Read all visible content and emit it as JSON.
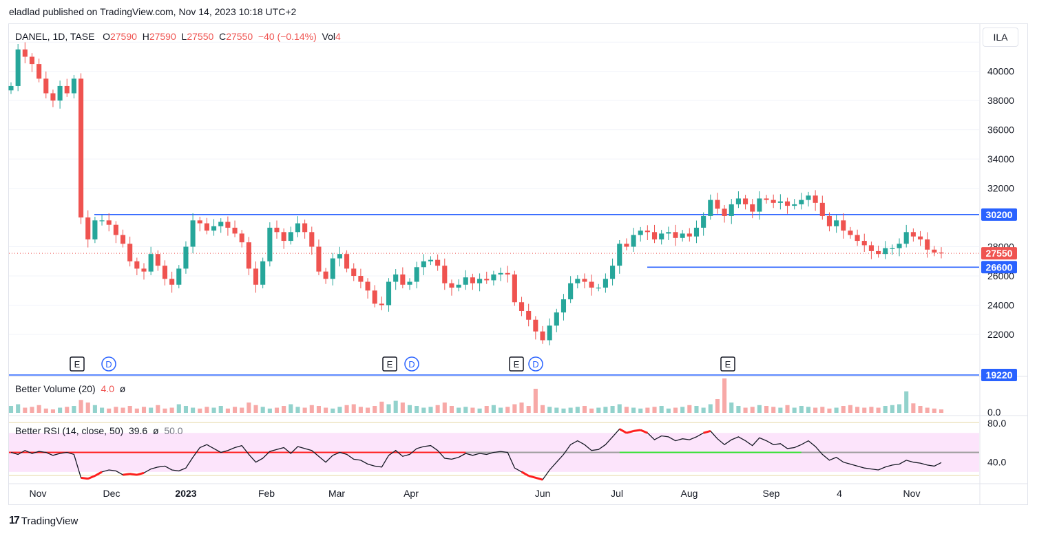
{
  "publisher": "eladlad published on TradingView.com, Nov 14, 2023 10:18 UTC+2",
  "currency_button": "ILA",
  "legend": {
    "symbol": "DANEL, 1D, TASE",
    "o_label": "O",
    "o_value": "27590",
    "h_label": "H",
    "h_value": "27590",
    "l_label": "L",
    "l_value": "27550",
    "c_label": "C",
    "c_value": "27550",
    "change": "−40 (−0.14%)",
    "vol_label": "Vol",
    "vol_value": "4"
  },
  "volume_legend": {
    "name": "Better Volume (20)",
    "value": "4.0",
    "symbol": "ø"
  },
  "rsi_legend": {
    "name": "Better RSI (14, close, 50)",
    "value": "39.6",
    "symbol": "ø",
    "level": "50.0"
  },
  "brand": "TradingView",
  "colors": {
    "up": "#26a69a",
    "down": "#ef5350",
    "line": "#2962ff",
    "rsi_band": "#fce4fb"
  },
  "chart_data": {
    "type": "candlestick",
    "price_axis": {
      "ylim": [
        19220,
        43000
      ],
      "ticks": [
        "42000",
        "40000",
        "38000",
        "36000",
        "34000",
        "32000",
        "28000",
        "26000",
        "24000",
        "22000"
      ]
    },
    "price_tags": [
      {
        "label": "30200",
        "value": 30200,
        "color": "#2962ff"
      },
      {
        "label": "27550",
        "value": 27550,
        "color": "#ef5350"
      },
      {
        "label": "26600",
        "value": 26600,
        "color": "#2962ff"
      },
      {
        "label": "19220",
        "value": 19220,
        "color": "#2962ff"
      }
    ],
    "horizontal_lines": [
      {
        "value": 30200,
        "from_month": "Dec",
        "to": "end"
      },
      {
        "value": 26600,
        "from_month": "Jul",
        "to": "end"
      },
      {
        "value": 19220,
        "from_month": "start",
        "to": "end"
      }
    ],
    "time_axis": [
      "Nov",
      "Dec",
      "2023",
      "Feb",
      "Mar",
      "Apr",
      "Jun",
      "Jul",
      "Aug",
      "Sep",
      "4",
      "Nov"
    ],
    "events": [
      "E",
      "D",
      "E",
      "D",
      "E",
      "D",
      "E"
    ],
    "close_series": [
      39000,
      41500,
      41000,
      40500,
      39500,
      38500,
      38000,
      39000,
      38500,
      39500,
      30000,
      28500,
      29800,
      29800,
      29500,
      28800,
      28200,
      27000,
      26500,
      26300,
      27500,
      26700,
      25800,
      25400,
      26500,
      28000,
      29800,
      29600,
      29100,
      29400,
      29700,
      29300,
      28900,
      28300,
      26500,
      25400,
      27000,
      29300,
      29000,
      28400,
      29000,
      29600,
      29000,
      28000,
      26300,
      25800,
      27200,
      27500,
      26500,
      26000,
      25600,
      25000,
      24100,
      24000,
      25600,
      26100,
      25400,
      25600,
      26600,
      27000,
      27100,
      26700,
      25500,
      25200,
      25400,
      25900,
      25500,
      25800,
      25700,
      26100,
      26200,
      26100,
      24200,
      23600,
      23000,
      22200,
      21600,
      22600,
      23500,
      24400,
      25500,
      25800,
      25600,
      25200,
      25200,
      25800,
      26700,
      28200,
      28000,
      28800,
      29100,
      29000,
      28500,
      28900,
      29000,
      28600,
      28900,
      28700,
      29300,
      30100,
      31200,
      30600,
      30100,
      30900,
      31300,
      30900,
      30400,
      31300,
      31200,
      31000,
      31100,
      30800,
      30900,
      31200,
      31500,
      31000,
      30100,
      29400,
      29800,
      29100,
      28800,
      28400,
      28100,
      27700,
      27500,
      27900,
      27900,
      28200,
      29000,
      28700,
      28500,
      27800,
      27600,
      27550
    ],
    "volume_series": [
      8,
      10,
      6,
      7,
      9,
      5,
      4,
      6,
      7,
      8,
      15,
      12,
      9,
      6,
      5,
      7,
      6,
      8,
      5,
      7,
      6,
      9,
      5,
      6,
      10,
      8,
      6,
      5,
      7,
      6,
      8,
      5,
      7,
      6,
      12,
      9,
      7,
      5,
      6,
      8,
      10,
      7,
      6,
      9,
      8,
      6,
      5,
      7,
      9,
      10,
      7,
      6,
      8,
      13,
      10,
      14,
      12,
      9,
      8,
      6,
      7,
      9,
      12,
      8,
      6,
      7,
      6,
      5,
      8,
      9,
      6,
      7,
      10,
      12,
      8,
      28,
      9,
      7,
      6,
      5,
      6,
      7,
      8,
      5,
      6,
      7,
      8,
      10,
      7,
      6,
      5,
      6,
      7,
      8,
      5,
      6,
      7,
      9,
      8,
      6,
      10,
      16,
      40,
      12,
      8,
      6,
      7,
      9,
      8,
      7,
      6,
      9,
      6,
      8,
      7,
      6,
      7,
      5,
      6,
      8,
      9,
      7,
      6,
      7,
      6,
      8,
      9,
      10,
      25,
      11,
      8,
      6,
      5,
      4
    ],
    "rsi_axis": {
      "ylim": [
        20,
        85
      ],
      "ticks": [
        "80.0",
        "40.0"
      ],
      "midline": 50
    },
    "rsi_series": [
      50,
      48,
      52,
      49,
      51,
      50,
      47,
      49,
      50,
      48,
      24,
      23,
      26,
      30,
      32,
      31,
      27,
      28,
      27,
      29,
      33,
      35,
      36,
      32,
      31,
      34,
      45,
      55,
      58,
      54,
      50,
      52,
      55,
      57,
      48,
      40,
      44,
      51,
      53,
      55,
      49,
      56,
      54,
      52,
      46,
      40,
      47,
      50,
      48,
      43,
      42,
      38,
      36,
      35,
      47,
      52,
      46,
      48,
      54,
      56,
      57,
      52,
      44,
      43,
      45,
      49,
      47,
      49,
      48,
      50,
      51,
      50,
      34,
      30,
      26,
      24,
      22,
      32,
      40,
      48,
      58,
      62,
      58,
      52,
      53,
      58,
      66,
      74,
      70,
      72,
      73,
      70,
      63,
      67,
      66,
      62,
      64,
      63,
      66,
      70,
      72,
      64,
      58,
      63,
      66,
      62,
      57,
      65,
      62,
      58,
      59,
      54,
      55,
      58,
      62,
      56,
      48,
      42,
      45,
      40,
      38,
      36,
      34,
      33,
      32,
      35,
      37,
      38,
      42,
      40,
      39,
      37,
      36,
      39.6
    ]
  }
}
